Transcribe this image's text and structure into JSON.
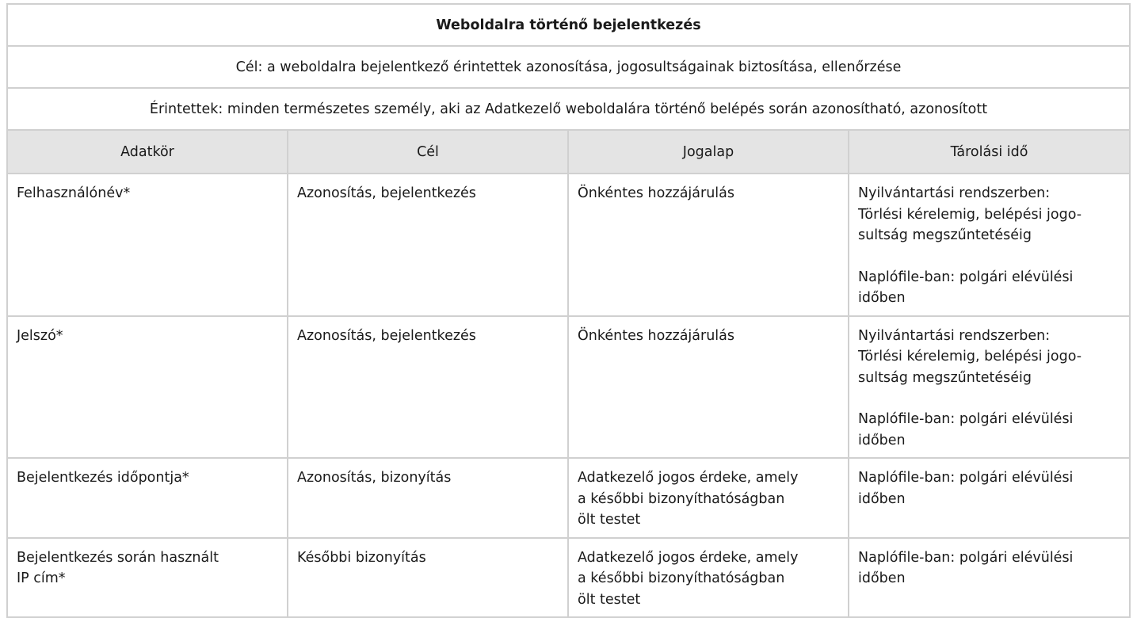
{
  "title": "Weboldalra történő bejelentkezés",
  "purpose": "Cél: a weboldalra bejelentkező érintettek azonosítása, jogosultságainak biztosítása, ellenőrzése",
  "affected": "Érintettek: minden természetes személy, aki az Adatkezelő weboldalára történő belépés során azonosítható, azonosított",
  "columns": [
    "Adatkör",
    "Cél",
    "Jogalap",
    "Tárolási idő"
  ],
  "rows": [
    {
      "data": "Felhasználónév*",
      "purpose": "Azonosítás, bejelentkezés",
      "legal": "Önkéntes hozzájárulás",
      "storage1": "Nyilvántartási rendszerben:\nTörlési kérelemig, belépési jogo-\nsultság megszűntetéséig",
      "storage2": "Naplófile-ban: polgári elévülési\nidőben"
    },
    {
      "data": "Jelszó*",
      "purpose": "Azonosítás, bejelentkezés",
      "legal": "Önkéntes hozzájárulás",
      "storage1": "Nyilvántartási rendszerben:\nTörlési kérelemig, belépési jogo-\nsultság megszűntetéséig",
      "storage2": "Naplófile-ban: polgári elévülési\nidőben"
    },
    {
      "data": "Bejelentkezés időpontja*",
      "purpose": "Azonosítás, bizonyítás",
      "legal": "Adatkezelő jogos érdeke, amely\na későbbi bizonyíthatóságban\nölt testet",
      "storage1": "Naplófile-ban: polgári elévülési\nidőben"
    },
    {
      "data": "Bejelentkezés során használt\nIP cím*",
      "purpose": "Későbbi bizonyítás",
      "legal": "Adatkezelő jogos érdeke, amely\na későbbi bizonyíthatóságban\nölt testet",
      "storage1": "Naplófile-ban: polgári elévülési\nidőben"
    }
  ]
}
